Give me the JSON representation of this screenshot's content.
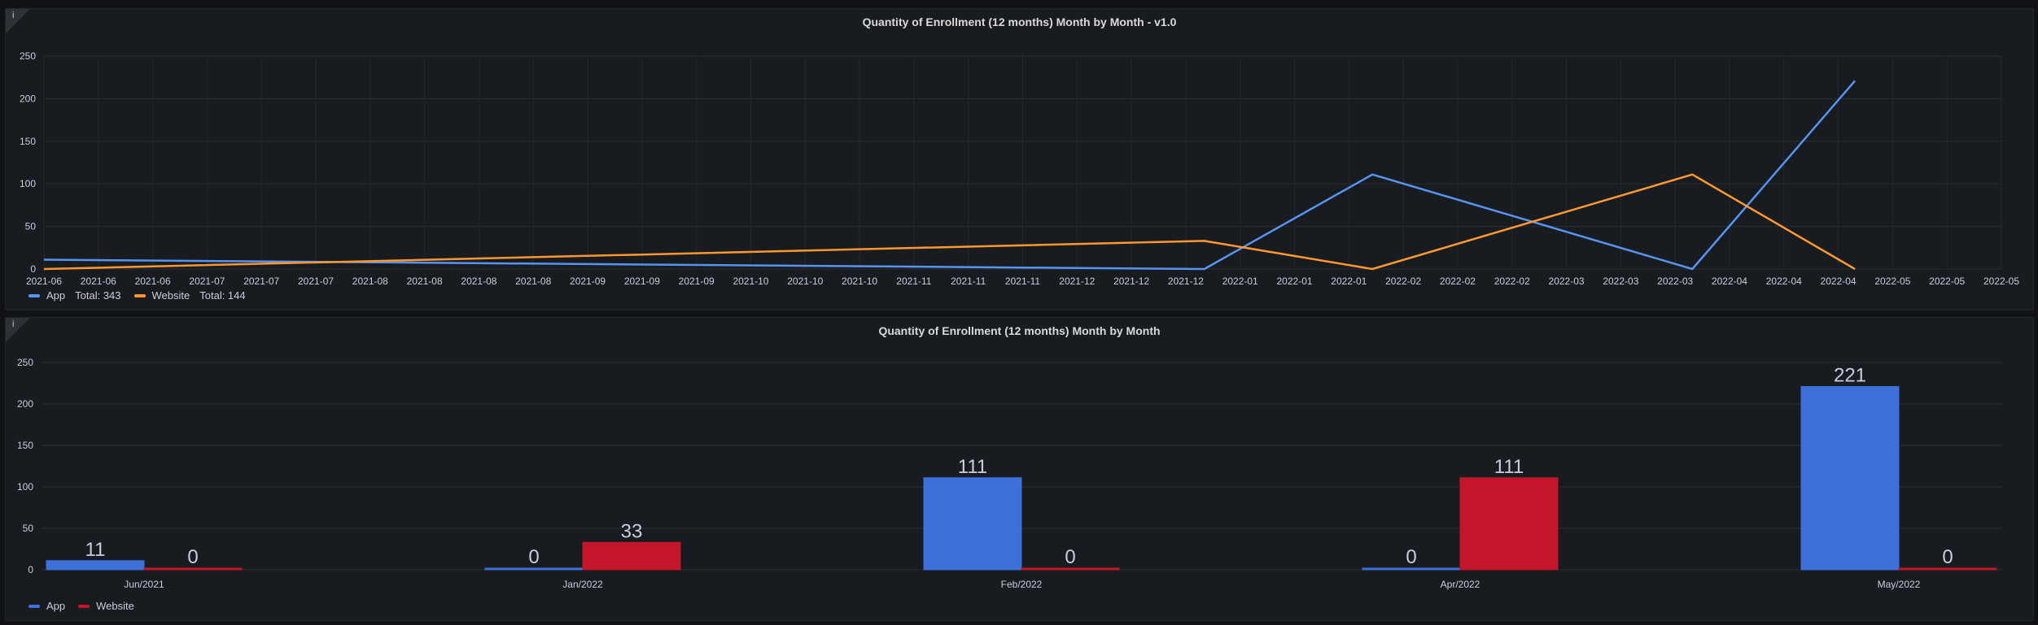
{
  "panels": [
    {
      "title": "Quantity of Enrollment (12 months) Month by Month - v1.0",
      "info_icon": "info-icon",
      "legend": [
        {
          "name": "App",
          "total_label": "Total: 343",
          "color": "#5794f2"
        },
        {
          "name": "Website",
          "total_label": "Total: 144",
          "color": "#ff9830"
        }
      ]
    },
    {
      "title": "Quantity of Enrollment (12 months) Month by Month",
      "info_icon": "info-icon",
      "legend": [
        {
          "name": "App",
          "color": "#3d71d9"
        },
        {
          "name": "Website",
          "color": "#c4162a"
        }
      ]
    }
  ],
  "chart_data": [
    {
      "type": "line",
      "title": "Quantity of Enrollment (12 months) Month by Month - v1.0",
      "xlabel": "",
      "ylabel": "",
      "ylim": [
        0,
        250
      ],
      "yticks": [
        0,
        50,
        100,
        150,
        200,
        250
      ],
      "x_tick_labels": [
        "2021-06",
        "2021-06",
        "2021-06",
        "2021-07",
        "2021-07",
        "2021-07",
        "2021-08",
        "2021-08",
        "2021-08",
        "2021-08",
        "2021-09",
        "2021-09",
        "2021-09",
        "2021-10",
        "2021-10",
        "2021-10",
        "2021-11",
        "2021-11",
        "2021-11",
        "2021-12",
        "2021-12",
        "2021-12",
        "2022-01",
        "2022-01",
        "2022-01",
        "2022-02",
        "2022-02",
        "2022-02",
        "2022-03",
        "2022-03",
        "2022-03",
        "2022-04",
        "2022-04",
        "2022-04",
        "2022-05",
        "2022-05",
        "2022-05"
      ],
      "x": [
        "2021-06-01",
        "2022-01-01",
        "2022-02-01",
        "2022-04-01",
        "2022-05-01"
      ],
      "series": [
        {
          "name": "App",
          "color": "#5794f2",
          "values": [
            11,
            0,
            111,
            0,
            221
          ]
        },
        {
          "name": "Website",
          "color": "#ff9830",
          "values": [
            0,
            33,
            0,
            111,
            0
          ]
        }
      ],
      "grid": true,
      "legend_position": "bottom-left"
    },
    {
      "type": "bar",
      "title": "Quantity of Enrollment (12 months) Month by Month",
      "xlabel": "",
      "ylabel": "",
      "ylim": [
        0,
        250
      ],
      "yticks": [
        0,
        50,
        100,
        150,
        200,
        250
      ],
      "categories": [
        "Jun/2021",
        "Jan/2022",
        "Feb/2022",
        "Apr/2022",
        "May/2022"
      ],
      "series": [
        {
          "name": "App",
          "color": "#3d71d9",
          "values": [
            11,
            0,
            111,
            0,
            221
          ]
        },
        {
          "name": "Website",
          "color": "#c4162a",
          "values": [
            0,
            33,
            0,
            111,
            0
          ]
        }
      ],
      "grid": true,
      "legend_position": "bottom-left"
    }
  ]
}
